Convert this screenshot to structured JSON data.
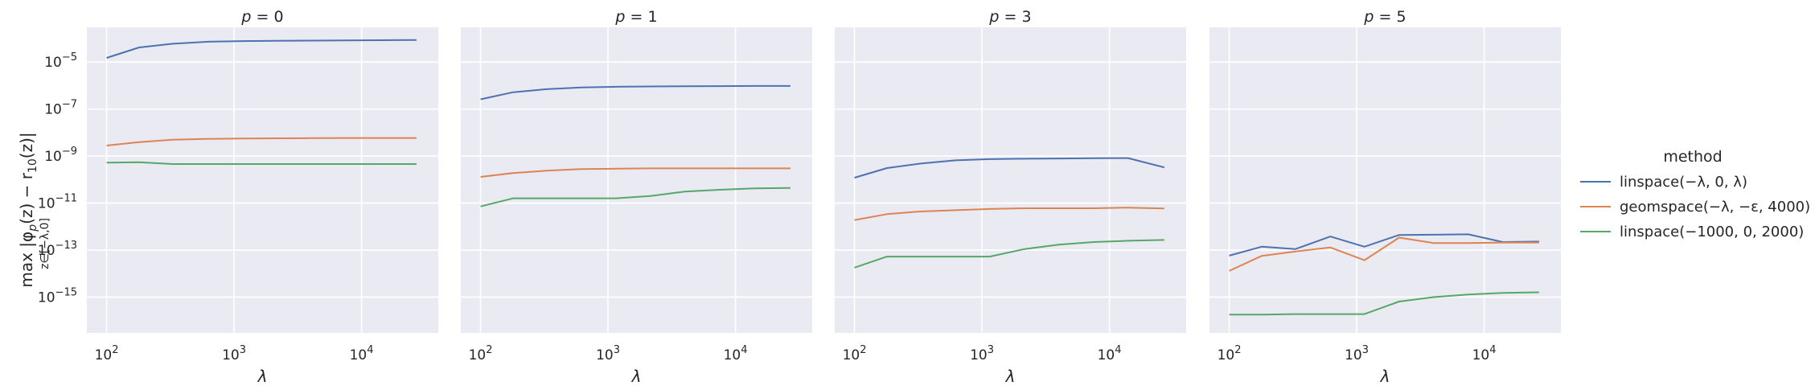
{
  "chart_data": {
    "type": "line",
    "layout": "faceted, 4 panels sharing y axis",
    "xscale": "log",
    "yscale": "log",
    "xlim": [
      70,
      40000
    ],
    "ylim": [
      3e-17,
      0.0003
    ],
    "x_ticks": [
      {
        "value": 100,
        "base": "10",
        "exp": "2"
      },
      {
        "value": 1000,
        "base": "10",
        "exp": "3"
      },
      {
        "value": 10000,
        "base": "10",
        "exp": "4"
      }
    ],
    "y_ticks": [
      {
        "value": 1e-05,
        "base": "10",
        "exp": "−5"
      },
      {
        "value": 1e-07,
        "base": "10",
        "exp": "−7"
      },
      {
        "value": 1e-09,
        "base": "10",
        "exp": "−9"
      },
      {
        "value": 1e-11,
        "base": "10",
        "exp": "−11"
      },
      {
        "value": 1e-13,
        "base": "10",
        "exp": "−13"
      },
      {
        "value": 1e-15,
        "base": "10",
        "exp": "−15"
      }
    ],
    "xlabel": "λ",
    "ylabel_main": "max |φ",
    "ylabel_sub_p": "p",
    "ylabel_mid": "(z) − r",
    "ylabel_sub_10": "10",
    "ylabel_end": "(z)|",
    "ylabel_under": "z∈[−λ,0]",
    "grid": true,
    "legend": {
      "title": "method",
      "placement": "right",
      "entries": [
        "linspace(−λ, 0, λ)",
        "geomspace(−λ, −ε, 4000)",
        "linspace(−1000, 0, 2000)"
      ]
    },
    "colors": {
      "linspace(−λ, 0, λ)": "#4c72b0",
      "geomspace(−λ, −ε, 4000)": "#dd8452",
      "linspace(−1000, 0, 2000)": "#55a868",
      "panel_bg": "#eaeaf2",
      "grid": "#ffffff"
    },
    "x": [
      100,
      180,
      330,
      620,
      1150,
      2150,
      4000,
      7500,
      14000,
      27000
    ],
    "panels": [
      {
        "title_var": "p",
        "title_val": " = 0",
        "series": [
          {
            "name": "linspace(−λ, 0, λ)",
            "values": [
              1.5e-05,
              4.2e-05,
              6e-05,
              7.3e-05,
              7.8e-05,
              8e-05,
              8.2e-05,
              8.3e-05,
              8.5e-05,
              8.7e-05
            ]
          },
          {
            "name": "geomspace(−λ, −ε, 4000)",
            "values": [
              2.8e-09,
              3.9e-09,
              5e-09,
              5.4e-09,
              5.6e-09,
              5.7e-09,
              5.8e-09,
              5.9e-09,
              5.9e-09,
              5.9e-09
            ]
          },
          {
            "name": "linspace(−1000, 0, 2000)",
            "values": [
              5.3e-10,
              5.5e-10,
              4.6e-10,
              4.6e-10,
              4.6e-10,
              4.6e-10,
              4.6e-10,
              4.6e-10,
              4.6e-10,
              4.6e-10
            ]
          }
        ]
      },
      {
        "title_var": "p",
        "title_val": " = 1",
        "series": [
          {
            "name": "linspace(−λ, 0, λ)",
            "values": [
              2.6e-07,
              5.2e-07,
              7e-07,
              8.3e-07,
              8.9e-07,
              9.2e-07,
              9.4e-07,
              9.5e-07,
              9.6e-07,
              9.6e-07
            ]
          },
          {
            "name": "geomspace(−λ, −ε, 4000)",
            "values": [
              1.3e-10,
              1.9e-10,
              2.4e-10,
              2.8e-10,
              2.9e-10,
              3e-10,
              3e-10,
              3e-10,
              3e-10,
              3e-10
            ]
          },
          {
            "name": "linspace(−1000, 0, 2000)",
            "values": [
              7.2e-12,
              1.6e-11,
              1.6e-11,
              1.6e-11,
              1.6e-11,
              2e-11,
              3.1e-11,
              3.7e-11,
              4.2e-11,
              4.4e-11
            ]
          }
        ]
      },
      {
        "title_var": "p",
        "title_val": " = 3",
        "series": [
          {
            "name": "linspace(−λ, 0, λ)",
            "values": [
              1.2e-10,
              3.1e-10,
              4.8e-10,
              6.6e-10,
              7.4e-10,
              7.7e-10,
              7.9e-10,
              8.1e-10,
              8.2e-10,
              3.3e-10
            ]
          },
          {
            "name": "geomspace(−λ, −ε, 4000)",
            "values": [
              1.9e-12,
              3.4e-12,
              4.4e-12,
              5e-12,
              5.6e-12,
              6e-12,
              6e-12,
              6e-12,
              6.4e-12,
              5.9e-12
            ]
          },
          {
            "name": "linspace(−1000, 0, 2000)",
            "values": [
              1.8e-14,
              5.3e-14,
              5.3e-14,
              5.3e-14,
              5.3e-14,
              1.1e-13,
              1.7e-13,
              2.2e-13,
              2.5e-13,
              2.7e-13
            ]
          }
        ]
      },
      {
        "title_var": "p",
        "title_val": " = 5",
        "series": [
          {
            "name": "linspace(−λ, 0, λ)",
            "values": [
              5.8e-14,
              1.4e-13,
              1.1e-13,
              3.8e-13,
              1.4e-13,
              4.4e-13,
              4.5e-13,
              4.7e-13,
              2.2e-13,
              2.3e-13
            ]
          },
          {
            "name": "geomspace(−λ, −ε, 4000)",
            "values": [
              1.3e-14,
              5.7e-14,
              8.7e-14,
              1.3e-13,
              3.7e-14,
              3.4e-13,
              2e-13,
              2e-13,
              2.1e-13,
              2.1e-13
            ]
          },
          {
            "name": "linspace(−1000, 0, 2000)",
            "values": [
              1.8e-16,
              1.8e-16,
              1.9e-16,
              1.9e-16,
              1.9e-16,
              6.5e-16,
              1e-15,
              1.3e-15,
              1.5e-15,
              1.6e-15
            ]
          }
        ]
      }
    ]
  }
}
